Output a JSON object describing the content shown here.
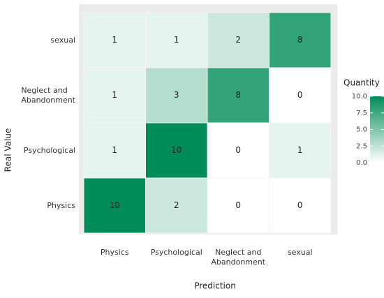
{
  "chart_data": {
    "type": "heatmap",
    "x_label": "Prediction",
    "y_label": "Real Value",
    "x_categories": [
      "Physics",
      "Psychological",
      "Neglect and\nAbandonment",
      "sexual"
    ],
    "y_categories": [
      "Physics",
      "Psychological",
      "Neglect and\nAbandonment",
      "sexual"
    ],
    "values": [
      [
        10,
        2,
        0,
        0
      ],
      [
        1,
        10,
        0,
        1
      ],
      [
        1,
        3,
        8,
        0
      ],
      [
        1,
        1,
        2,
        8
      ]
    ],
    "legend_title": "Quantity",
    "low_color": "#ffffff",
    "high_color": "#008c5a",
    "fill_lim": [
      0,
      10
    ],
    "fill_ticks": [
      {
        "value": 0,
        "label": "0.0"
      },
      {
        "value": 2.5,
        "label": "2.5"
      },
      {
        "value": 5,
        "label": "5.0"
      },
      {
        "value": 7.5,
        "label": "7.5"
      },
      {
        "value": 10,
        "label": "10.0"
      }
    ]
  }
}
